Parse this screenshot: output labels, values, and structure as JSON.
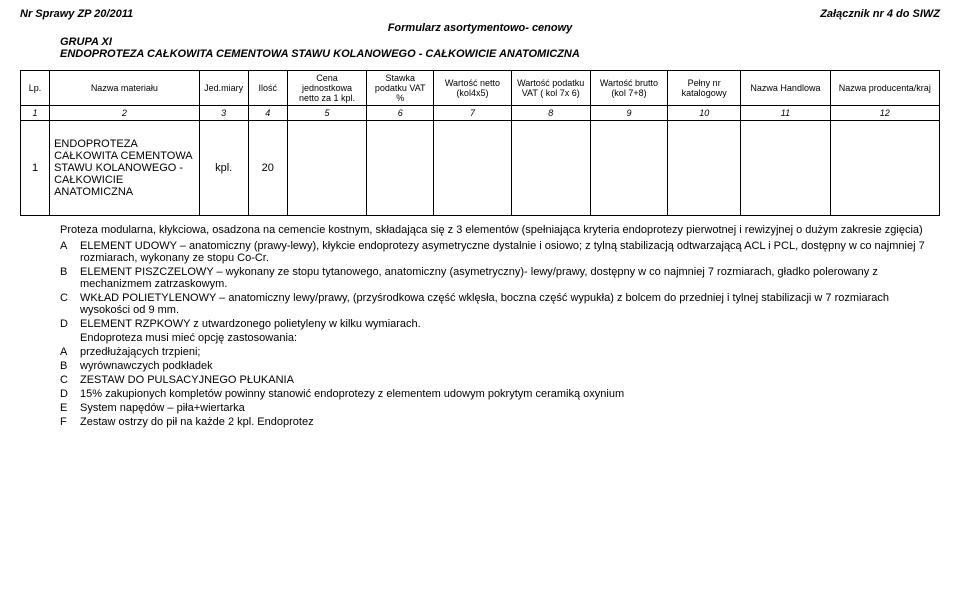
{
  "header": {
    "left": "Nr Sprawy  ZP 20/2011",
    "right": "Załącznik nr 4 do SIWZ",
    "center": "Formularz asortymentowo- cenowy",
    "group": "GRUPA XI",
    "title": "ENDOPROTEZA CAŁKOWITA CEMENTOWA STAWU KOLANOWEGO - CAŁKOWICIE ANATOMICZNA"
  },
  "table": {
    "headers": [
      "Lp.",
      "Nazwa materiału",
      "Jed.miary",
      "Ilość",
      "Cena jednostkowa netto  za 1 kpl.",
      "Stawka podatku VAT %",
      "Wartość netto (kol4x5)",
      "Wartość podatku VAT ( kol 7x 6)",
      "Wartość brutto (kol 7+8)",
      "Pełny nr katalogowy",
      "Nazwa Handlowa",
      "Nazwa producenta/kraj"
    ],
    "nums": [
      "1",
      "2",
      "3",
      "4",
      "5",
      "6",
      "7",
      "8",
      "9",
      "10",
      "11",
      "12"
    ],
    "row": {
      "lp": "1",
      "nazwa": "ENDOPROTEZA CAŁKOWITA CEMENTOWA STAWU KOLANOWEGO - CAŁKOWICIE ANATOMICZNA",
      "jm": "kpl.",
      "ilosc": "20"
    }
  },
  "desc": {
    "intro": "Proteza modularna, kłykciowa, osadzona na cemencie kostnym, składająca się z 3 elementów (spełniająca kryteria endoprotezy pierwotnej i rewizyjnej o dużym zakresie zgięcia)",
    "items1": [
      {
        "l": "A",
        "t": "ELEMENT UDOWY – anatomiczny (prawy-lewy), kłykcie endoprotezy asymetryczne dystalnie i osiowo; z tylną stabilizacją odtwarzającą ACL i PCL, dostępny w co najmniej 7 rozmiarach, wykonany ze stopu Co-Cr."
      },
      {
        "l": "B",
        "t": "ELEMENT PISZCZELOWY – wykonany ze stopu tytanowego, anatomiczny (asymetryczny)- lewy/prawy, dostępny w co najmniej 7 rozmiarach, gładko polerowany z mechanizmem zatrzaskowym."
      },
      {
        "l": "C",
        "t": "WKŁAD POLIETYLENOWY – anatomiczny lewy/prawy, (przyśrodkowa część wklęsła, boczna część wypukła) z bolcem do przedniej i tylnej stabilizacji w 7 rozmiarach wysokości od 9 mm."
      },
      {
        "l": "D",
        "t": "ELEMENT RZPKOWY  z utwardzonego polietyleny w kilku wymiarach."
      }
    ],
    "mid": "Endoproteza musi mieć opcję zastosowania:",
    "items2": [
      {
        "l": "A",
        "t": " przedłużających trzpieni;"
      },
      {
        "l": "B",
        "t": "wyrównawczych podkładek"
      },
      {
        "l": "C",
        "t": "ZESTAW DO PULSACYJNEGO PŁUKANIA"
      },
      {
        "l": "D",
        "t": "15% zakupionych kompletów powinny stanowić endoprotezy z elementem udowym pokrytym ceramiką oxynium"
      },
      {
        "l": "E",
        "t": "System napędów – piła+wiertarka"
      },
      {
        "l": "F",
        "t": "Zestaw ostrzy do pił na każde 2 kpl. Endoprotez"
      }
    ]
  }
}
